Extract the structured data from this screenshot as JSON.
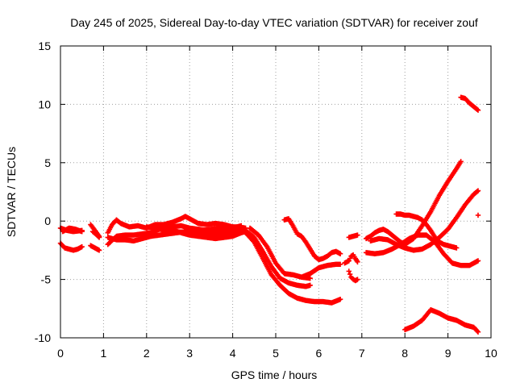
{
  "chart_data": {
    "type": "scatter",
    "title": "Day 245 of 2025, Sidereal Day-to-day VTEC variation (SDTVAR) for receiver zouf",
    "xlabel": "GPS time / hours",
    "ylabel": "SDTVAR / TECUs",
    "xlim": [
      0,
      10
    ],
    "ylim": [
      -10,
      15
    ],
    "x_ticks": [
      0,
      1,
      2,
      3,
      4,
      5,
      6,
      7,
      8,
      9,
      10
    ],
    "y_ticks": [
      -10,
      -5,
      0,
      5,
      10,
      15
    ],
    "grid": true,
    "marker": "plus",
    "color": "#ff0000",
    "series": [
      {
        "name": "arc-1",
        "x": [
          0.0,
          0.1,
          0.2,
          0.3,
          0.4,
          0.5
        ],
        "y": [
          -1.9,
          -2.3,
          -2.4,
          -2.5,
          -2.4,
          -2.2
        ]
      },
      {
        "name": "arc-2",
        "x": [
          0.0,
          0.15,
          0.3,
          0.5
        ],
        "y": [
          -0.6,
          -0.8,
          -0.9,
          -0.8
        ]
      },
      {
        "name": "arc-3",
        "x": [
          0.05,
          0.2,
          0.35,
          0.5
        ],
        "y": [
          -0.9,
          -0.6,
          -0.7,
          -0.9
        ]
      },
      {
        "name": "arc-4",
        "x": [
          0.7,
          0.8,
          0.9
        ],
        "y": [
          -2.1,
          -2.3,
          -2.5
        ]
      },
      {
        "name": "arc-5",
        "x": [
          0.7,
          0.8,
          0.9
        ],
        "y": [
          -0.3,
          -0.8,
          -1.3
        ]
      },
      {
        "name": "arc-6",
        "x": [
          0.75,
          0.85,
          0.9
        ],
        "y": [
          -0.9,
          -1.2,
          -1.4
        ]
      },
      {
        "name": "arc-7",
        "x": [
          1.1,
          1.2,
          1.3,
          1.4,
          1.6,
          1.8,
          2.0,
          2.2,
          2.4,
          2.6,
          2.8,
          2.9,
          3.0,
          3.2,
          3.4,
          3.6,
          3.8,
          4.0,
          4.2
        ],
        "y": [
          -1.0,
          -0.3,
          0.1,
          -0.2,
          -0.5,
          -0.4,
          -0.6,
          -0.3,
          -0.3,
          -0.1,
          0.2,
          0.4,
          0.2,
          -0.2,
          -0.3,
          -0.2,
          -0.3,
          -0.5,
          -0.6
        ]
      },
      {
        "name": "arc-8",
        "x": [
          1.1,
          1.3,
          1.5,
          1.7,
          1.9,
          2.1,
          2.3,
          2.5,
          2.7,
          2.9,
          3.1,
          3.3,
          3.5,
          3.7,
          3.9,
          4.1,
          4.3
        ],
        "y": [
          -2.0,
          -1.3,
          -1.2,
          -1.2,
          -1.1,
          -1.0,
          -0.7,
          -0.8,
          -0.9,
          -1.0,
          -1.1,
          -1.1,
          -1.2,
          -1.1,
          -1.0,
          -0.8,
          -0.8
        ]
      },
      {
        "name": "arc-9",
        "x": [
          1.1,
          1.3,
          1.5,
          1.7,
          1.9,
          2.1,
          2.3,
          2.5,
          2.7,
          2.9,
          3.1,
          3.3,
          3.5,
          3.7,
          3.9,
          4.1,
          4.3
        ],
        "y": [
          -1.4,
          -1.6,
          -1.6,
          -1.7,
          -1.5,
          -1.3,
          -1.2,
          -1.1,
          -1.0,
          -0.9,
          -0.7,
          -0.8,
          -0.7,
          -0.6,
          -0.5,
          -0.5,
          -0.6
        ]
      },
      {
        "name": "arc-10",
        "x": [
          2.0,
          2.2,
          2.4,
          2.6,
          2.8,
          3.0,
          3.2,
          3.4,
          3.6,
          3.8,
          4.0,
          4.2
        ],
        "y": [
          -0.5,
          -0.6,
          -0.5,
          -0.5,
          -0.4,
          -0.6,
          -0.7,
          -0.8,
          -0.8,
          -0.7,
          -0.6,
          -0.4
        ]
      },
      {
        "name": "arc-11",
        "x": [
          2.8,
          3.0,
          3.2,
          3.4,
          3.6,
          3.8,
          4.0,
          4.2,
          4.3
        ],
        "y": [
          -1.0,
          -1.2,
          -1.3,
          -1.4,
          -1.5,
          -1.4,
          -1.3,
          -1.0,
          -0.9
        ]
      },
      {
        "name": "arc-12",
        "x": [
          4.3,
          4.5,
          4.7,
          4.9,
          5.1,
          5.3,
          5.5,
          5.7,
          5.9,
          6.1,
          6.3,
          6.5
        ],
        "y": [
          -1.0,
          -1.8,
          -3.2,
          -4.6,
          -5.5,
          -6.2,
          -6.6,
          -6.8,
          -6.9,
          -6.9,
          -7.0,
          -6.7
        ]
      },
      {
        "name": "arc-13",
        "x": [
          4.3,
          4.5,
          4.7,
          4.9,
          5.1,
          5.3,
          5.5,
          5.7,
          5.8
        ],
        "y": [
          -0.8,
          -1.4,
          -2.6,
          -3.9,
          -4.9,
          -5.3,
          -5.5,
          -5.6,
          -5.5
        ]
      },
      {
        "name": "arc-14",
        "x": [
          4.4,
          4.6,
          4.8,
          5.0,
          5.2,
          5.4,
          5.6,
          5.8
        ],
        "y": [
          -0.6,
          -1.2,
          -2.2,
          -3.6,
          -4.5,
          -4.6,
          -4.8,
          -4.9
        ]
      },
      {
        "name": "arc-15",
        "x": [
          5.2,
          5.3,
          5.4,
          5.5,
          5.6,
          5.7,
          5.8,
          5.9,
          6.0,
          6.1,
          6.2,
          6.3,
          6.4,
          6.5
        ],
        "y": [
          0.1,
          0.2,
          -0.4,
          -1.1,
          -1.3,
          -1.8,
          -2.4,
          -3.0,
          -3.3,
          -3.2,
          -3.0,
          -2.7,
          -2.6,
          -2.8
        ]
      },
      {
        "name": "arc-16",
        "x": [
          5.6,
          5.8,
          6.0,
          6.2,
          6.4,
          6.5
        ],
        "y": [
          -4.8,
          -4.5,
          -4.0,
          -3.8,
          -3.7,
          -3.7
        ]
      },
      {
        "name": "arc-17",
        "x": [
          6.6,
          6.7,
          6.75,
          6.8,
          6.85,
          6.9
        ],
        "y": [
          -3.6,
          -3.4,
          -3.0,
          -2.9,
          -3.2,
          -3.5
        ]
      },
      {
        "name": "arc-18",
        "x": [
          6.7,
          6.75,
          6.8,
          6.85,
          6.9
        ],
        "y": [
          -4.3,
          -4.8,
          -5.0,
          -5.1,
          -5.0
        ]
      },
      {
        "name": "arc-19",
        "x": [
          6.7,
          6.8,
          6.9
        ],
        "y": [
          -1.4,
          -1.3,
          -1.2
        ]
      },
      {
        "name": "arc-20",
        "x": [
          7.1,
          7.2,
          7.3,
          7.4,
          7.5,
          7.6,
          7.7,
          7.8,
          7.9,
          8.0,
          8.2,
          8.4,
          8.6,
          8.8,
          9.0,
          9.2,
          9.3
        ],
        "y": [
          -1.5,
          -1.3,
          -1.0,
          -0.8,
          -0.7,
          -0.9,
          -1.2,
          -1.5,
          -1.8,
          -2.0,
          -1.5,
          -0.4,
          0.8,
          2.2,
          3.4,
          4.5,
          5.1
        ]
      },
      {
        "name": "arc-21",
        "x": [
          7.1,
          7.3,
          7.5,
          7.7,
          7.9,
          8.1,
          8.3,
          8.5,
          8.7,
          8.9,
          9.1,
          9.3,
          9.5,
          9.7
        ],
        "y": [
          -2.7,
          -2.8,
          -2.7,
          -2.4,
          -2.0,
          -1.5,
          -1.2,
          -1.2,
          -1.8,
          -2.8,
          -3.6,
          -3.8,
          -3.8,
          -3.4
        ]
      },
      {
        "name": "arc-22",
        "x": [
          7.2,
          7.4,
          7.6,
          7.8,
          8.0,
          8.2,
          8.4,
          8.6,
          8.8,
          9.0,
          9.2,
          9.4,
          9.6,
          9.7
        ],
        "y": [
          -1.7,
          -1.5,
          -1.6,
          -2.0,
          -2.3,
          -2.5,
          -2.4,
          -2.0,
          -1.4,
          -0.7,
          0.3,
          1.4,
          2.3,
          2.6
        ]
      },
      {
        "name": "arc-23",
        "x": [
          7.8,
          7.9,
          8.0,
          8.1,
          8.2,
          8.3,
          8.4,
          8.5,
          8.6,
          8.7,
          8.8,
          8.9,
          9.0,
          9.1,
          9.2
        ],
        "y": [
          0.6,
          0.6,
          0.5,
          0.5,
          0.4,
          0.3,
          0.1,
          -0.3,
          -0.8,
          -1.4,
          -1.8,
          -2.0,
          -2.1,
          -2.2,
          -2.3
        ]
      },
      {
        "name": "arc-24",
        "x": [
          8.0,
          8.2,
          8.4,
          8.6,
          8.8,
          9.0,
          9.2,
          9.4,
          9.6,
          9.7
        ],
        "y": [
          -9.3,
          -9.0,
          -8.5,
          -7.6,
          -7.9,
          -8.3,
          -8.5,
          -8.9,
          -9.1,
          -9.5
        ]
      },
      {
        "name": "arc-25",
        "x": [
          9.3,
          9.4,
          9.5,
          9.6,
          9.7
        ],
        "y": [
          10.6,
          10.5,
          10.1,
          9.8,
          9.5
        ]
      },
      {
        "name": "arc-26",
        "x": [
          9.7
        ],
        "y": [
          0.5
        ]
      }
    ]
  }
}
